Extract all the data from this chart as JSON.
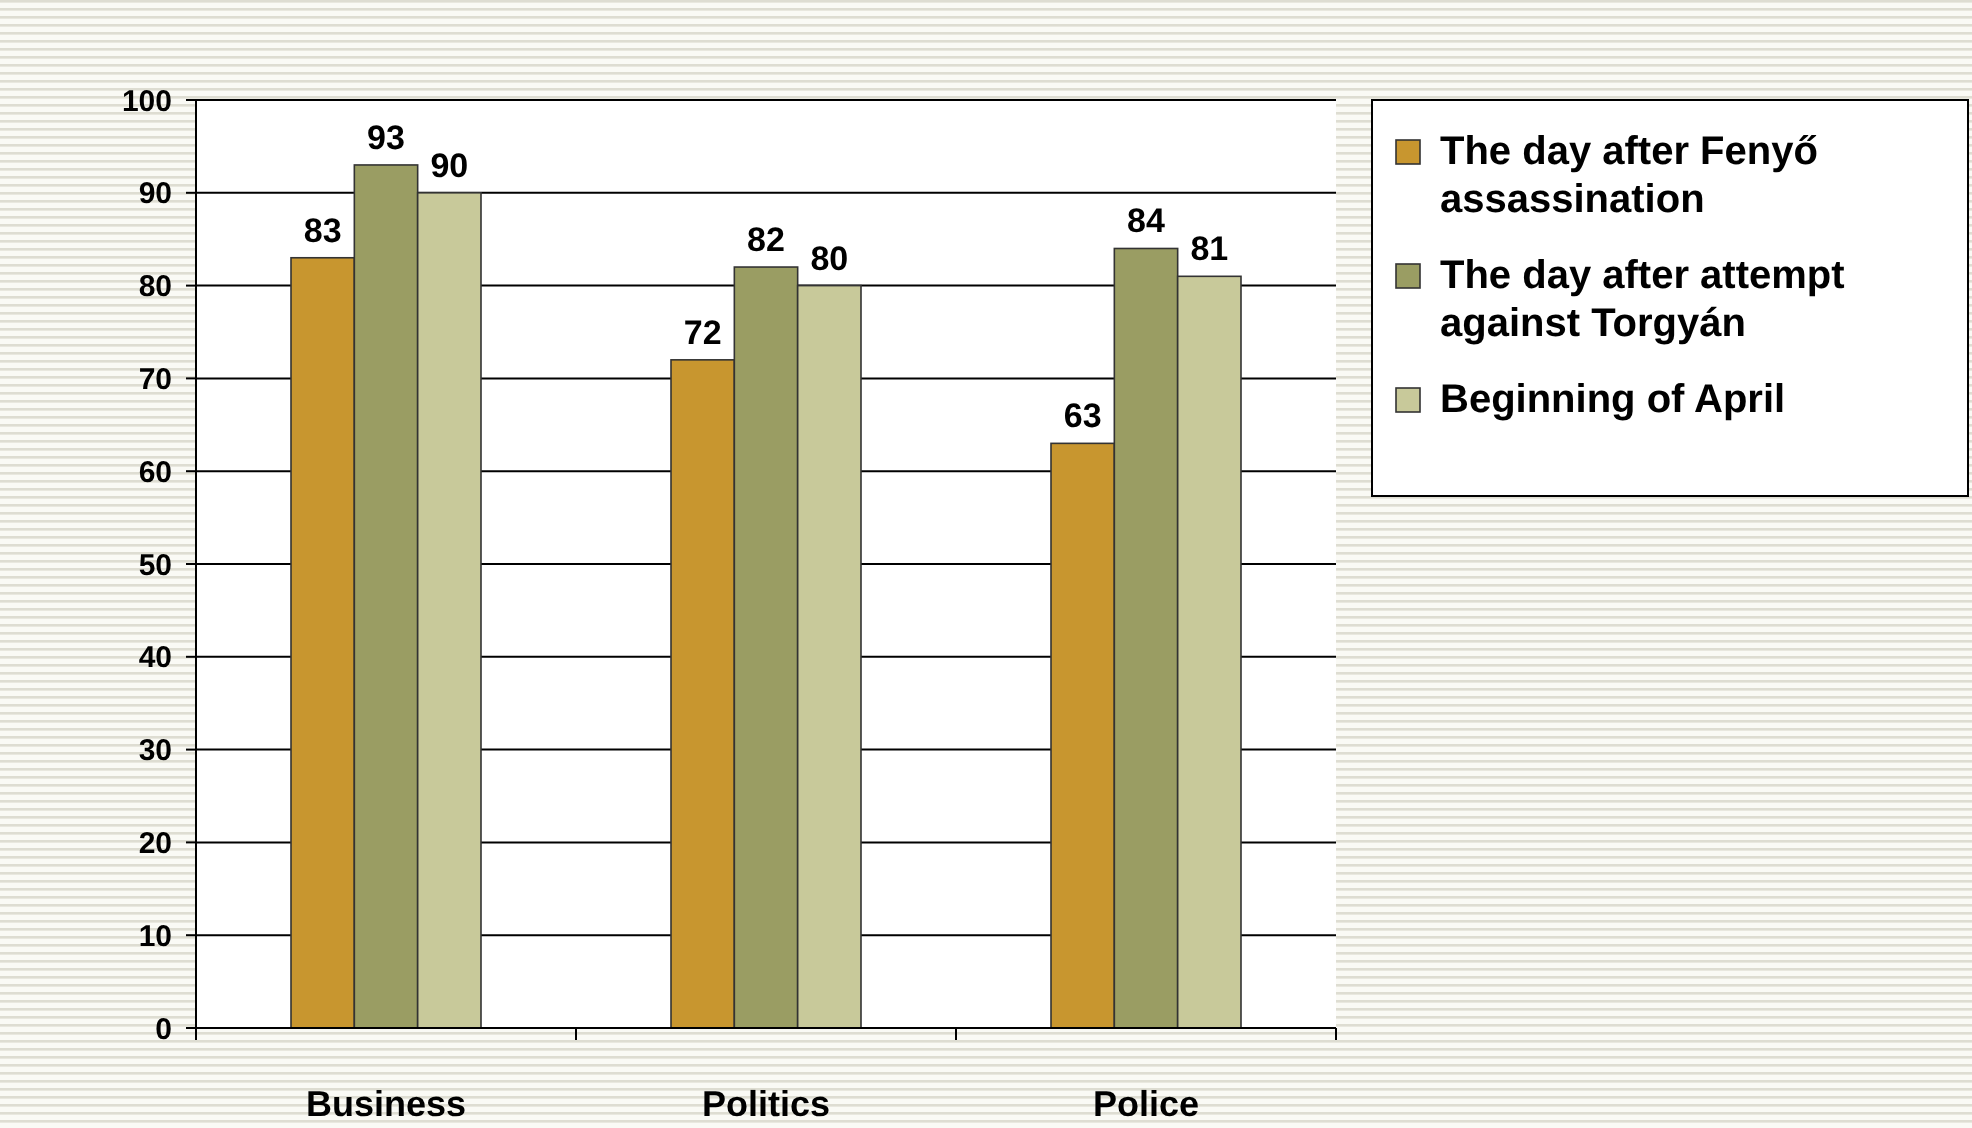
{
  "chart_data": {
    "type": "bar",
    "categories": [
      "Business",
      "Politics",
      "Police"
    ],
    "series": [
      {
        "name": "The day after Fenyő assassination",
        "color": "#c8962f",
        "values": [
          83,
          72,
          63
        ]
      },
      {
        "name": "The day after attempt against Torgyán",
        "color": "#9a9d63",
        "values": [
          93,
          82,
          84
        ]
      },
      {
        "name": "Beginning of April",
        "color": "#c8c99a",
        "values": [
          90,
          80,
          81
        ]
      }
    ],
    "ylim": [
      0,
      100
    ],
    "yticks": [
      0,
      10,
      20,
      30,
      40,
      50,
      60,
      70,
      80,
      90,
      100
    ],
    "grid": "y",
    "data_labels": true,
    "legend": "right"
  }
}
